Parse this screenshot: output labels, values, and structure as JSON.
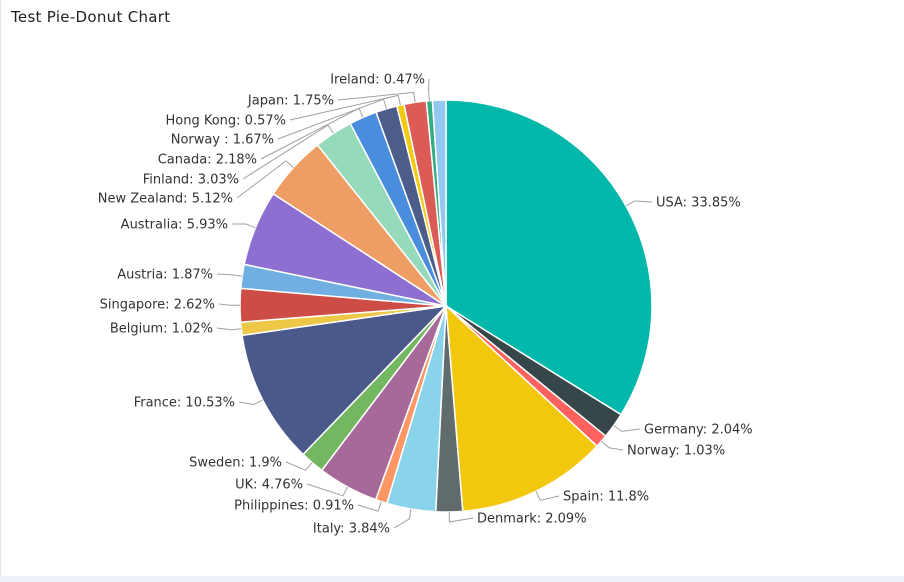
{
  "title": "Test Pie-Donut Chart",
  "chart_data": {
    "type": "pie",
    "title": "Test Pie-Donut Chart",
    "slices": [
      {
        "label": "USA",
        "value": 33.85,
        "color": "#01b8aa",
        "label_text": "USA: 33.85%"
      },
      {
        "label": "Germany",
        "value": 2.04,
        "color": "#374649",
        "label_text": "Germany: 2.04%"
      },
      {
        "label": "Norway",
        "value": 1.03,
        "color": "#fd625e",
        "label_text": "Norway: 1.03%"
      },
      {
        "label": "Spain",
        "value": 11.8,
        "color": "#f2c80f",
        "label_text": "Spain: 11.8%"
      },
      {
        "label": "Denmark",
        "value": 2.09,
        "color": "#5f6b6d",
        "label_text": "Denmark: 2.09%"
      },
      {
        "label": "Italy",
        "value": 3.84,
        "color": "#8ad4eb",
        "label_text": "Italy: 3.84%"
      },
      {
        "label": "Philippines",
        "value": 0.91,
        "color": "#fe9666",
        "label_text": "Philippines: 0.91%"
      },
      {
        "label": "UK",
        "value": 4.76,
        "color": "#a66999",
        "label_text": "UK: 4.76%"
      },
      {
        "label": "Sweden",
        "value": 1.9,
        "color": "#73b761",
        "label_text": "Sweden: 1.9%"
      },
      {
        "label": "France",
        "value": 10.53,
        "color": "#4a588a",
        "label_text": "France: 10.53%"
      },
      {
        "label": "Belgium",
        "value": 1.02,
        "color": "#ecc846",
        "label_text": "Belgium: 1.02%"
      },
      {
        "label": "Singapore",
        "value": 2.62,
        "color": "#cd4c46",
        "label_text": "Singapore: 2.62%"
      },
      {
        "label": "Austria",
        "value": 1.87,
        "color": "#71afe2",
        "label_text": "Austria: 1.87%"
      },
      {
        "label": "Australia",
        "value": 5.93,
        "color": "#8d6fd1",
        "label_text": "Australia: 5.93%"
      },
      {
        "label": "New Zealand",
        "value": 5.12,
        "color": "#ee9e64",
        "label_text": "New Zealand: 5.12%"
      },
      {
        "label": "Finland",
        "value": 3.03,
        "color": "#95dabb",
        "label_text": "Finland: 3.03%"
      },
      {
        "label": "Canada",
        "value": 2.18,
        "color": "#4a8ddc",
        "label_text": "Canada: 2.18%"
      },
      {
        "label": "Norway ",
        "value": 1.67,
        "color": "#4c5d8a",
        "label_text": "Norway : 1.67%"
      },
      {
        "label": "Hong Kong",
        "value": 0.57,
        "color": "#f3c911",
        "label_text": "Hong Kong: 0.57%"
      },
      {
        "label": "Japan",
        "value": 1.75,
        "color": "#dc5b57",
        "label_text": "Japan: 1.75%"
      },
      {
        "label": "Ireland",
        "value": 0.47,
        "color": "#33ae81",
        "label_text": "Ireland: 0.47%"
      },
      {
        "label": "",
        "value": 1.05,
        "color": "#95c8f0",
        "label_text": ""
      }
    ]
  }
}
